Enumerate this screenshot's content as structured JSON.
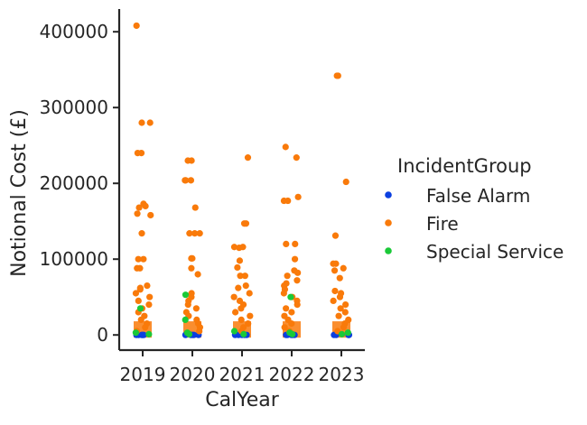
{
  "chart_data": {
    "type": "scatter",
    "title": "",
    "xlabel": "CalYear",
    "ylabel": "Notional Cost (£)",
    "categories": [
      "2019",
      "2020",
      "2021",
      "2022",
      "2023"
    ],
    "y_ticks": [
      "0",
      "100000",
      "200000",
      "300000",
      "400000"
    ],
    "ylim": [
      -20000,
      430000
    ],
    "legend": {
      "title": "IncidentGroup",
      "placement": "right"
    },
    "series": [
      {
        "name": "False Alarm",
        "color": "#0b3fe0",
        "points": [
          [
            "2019",
            0
          ],
          [
            "2019",
            0
          ],
          [
            "2019",
            0
          ],
          [
            "2019",
            0
          ],
          [
            "2019",
            0
          ],
          [
            "2020",
            0
          ],
          [
            "2020",
            0
          ],
          [
            "2020",
            0
          ],
          [
            "2020",
            0
          ],
          [
            "2020",
            0
          ],
          [
            "2021",
            0
          ],
          [
            "2021",
            0
          ],
          [
            "2021",
            0
          ],
          [
            "2021",
            0
          ],
          [
            "2021",
            0
          ],
          [
            "2022",
            0
          ],
          [
            "2022",
            0
          ],
          [
            "2022",
            0
          ],
          [
            "2022",
            0
          ],
          [
            "2022",
            0
          ],
          [
            "2023",
            0
          ],
          [
            "2023",
            0
          ],
          [
            "2023",
            0
          ],
          [
            "2023",
            0
          ]
        ]
      },
      {
        "name": "Fire",
        "color": "#f97a0a",
        "points": [
          [
            "2019",
            408000
          ],
          [
            "2019",
            280000
          ],
          [
            "2019",
            280000
          ],
          [
            "2019",
            240000
          ],
          [
            "2019",
            240000
          ],
          [
            "2019",
            173000
          ],
          [
            "2019",
            170000
          ],
          [
            "2019",
            168000
          ],
          [
            "2019",
            160000
          ],
          [
            "2019",
            158000
          ],
          [
            "2019",
            134000
          ],
          [
            "2019",
            100000
          ],
          [
            "2019",
            100000
          ],
          [
            "2019",
            88000
          ],
          [
            "2019",
            88000
          ],
          [
            "2019",
            65000
          ],
          [
            "2019",
            62000
          ],
          [
            "2019",
            60000
          ],
          [
            "2019",
            55000
          ],
          [
            "2019",
            50000
          ],
          [
            "2019",
            45000
          ],
          [
            "2019",
            40000
          ],
          [
            "2019",
            35000
          ],
          [
            "2019",
            30000
          ],
          [
            "2019",
            25000
          ],
          [
            "2019",
            20000
          ],
          [
            "2019",
            15000
          ],
          [
            "2019",
            10000
          ],
          [
            "2019",
            5000
          ],
          [
            "2020",
            230000
          ],
          [
            "2020",
            230000
          ],
          [
            "2020",
            204000
          ],
          [
            "2020",
            204000
          ],
          [
            "2020",
            204000
          ],
          [
            "2020",
            168000
          ],
          [
            "2020",
            134000
          ],
          [
            "2020",
            134000
          ],
          [
            "2020",
            134000
          ],
          [
            "2020",
            101000
          ],
          [
            "2020",
            101000
          ],
          [
            "2020",
            88000
          ],
          [
            "2020",
            80000
          ],
          [
            "2020",
            55000
          ],
          [
            "2020",
            50000
          ],
          [
            "2020",
            45000
          ],
          [
            "2020",
            40000
          ],
          [
            "2020",
            35000
          ],
          [
            "2020",
            30000
          ],
          [
            "2020",
            25000
          ],
          [
            "2020",
            20000
          ],
          [
            "2020",
            15000
          ],
          [
            "2020",
            10000
          ],
          [
            "2020",
            5000
          ],
          [
            "2021",
            234000
          ],
          [
            "2021",
            147000
          ],
          [
            "2021",
            147000
          ],
          [
            "2021",
            116000
          ],
          [
            "2021",
            116000
          ],
          [
            "2021",
            115000
          ],
          [
            "2021",
            98000
          ],
          [
            "2021",
            89000
          ],
          [
            "2021",
            78000
          ],
          [
            "2021",
            78000
          ],
          [
            "2021",
            65000
          ],
          [
            "2021",
            62000
          ],
          [
            "2021",
            55000
          ],
          [
            "2021",
            50000
          ],
          [
            "2021",
            45000
          ],
          [
            "2021",
            40000
          ],
          [
            "2021",
            35000
          ],
          [
            "2021",
            30000
          ],
          [
            "2021",
            25000
          ],
          [
            "2021",
            20000
          ],
          [
            "2021",
            15000
          ],
          [
            "2021",
            10000
          ],
          [
            "2021",
            5000
          ],
          [
            "2022",
            248000
          ],
          [
            "2022",
            234000
          ],
          [
            "2022",
            182000
          ],
          [
            "2022",
            177000
          ],
          [
            "2022",
            177000
          ],
          [
            "2022",
            120000
          ],
          [
            "2022",
            120000
          ],
          [
            "2022",
            100000
          ],
          [
            "2022",
            85000
          ],
          [
            "2022",
            82000
          ],
          [
            "2022",
            78000
          ],
          [
            "2022",
            72000
          ],
          [
            "2022",
            68000
          ],
          [
            "2022",
            65000
          ],
          [
            "2022",
            60000
          ],
          [
            "2022",
            55000
          ],
          [
            "2022",
            50000
          ],
          [
            "2022",
            45000
          ],
          [
            "2022",
            40000
          ],
          [
            "2022",
            35000
          ],
          [
            "2022",
            30000
          ],
          [
            "2022",
            25000
          ],
          [
            "2022",
            20000
          ],
          [
            "2022",
            15000
          ],
          [
            "2022",
            10000
          ],
          [
            "2022",
            5000
          ],
          [
            "2023",
            342000
          ],
          [
            "2023",
            342000
          ],
          [
            "2023",
            202000
          ],
          [
            "2023",
            131000
          ],
          [
            "2023",
            94000
          ],
          [
            "2023",
            94000
          ],
          [
            "2023",
            88000
          ],
          [
            "2023",
            85000
          ],
          [
            "2023",
            75000
          ],
          [
            "2023",
            58000
          ],
          [
            "2023",
            55000
          ],
          [
            "2023",
            50000
          ],
          [
            "2023",
            45000
          ],
          [
            "2023",
            40000
          ],
          [
            "2023",
            35000
          ],
          [
            "2023",
            30000
          ],
          [
            "2023",
            25000
          ],
          [
            "2023",
            20000
          ],
          [
            "2023",
            15000
          ],
          [
            "2023",
            10000
          ],
          [
            "2023",
            5000
          ]
        ]
      },
      {
        "name": "Special Service",
        "color": "#1ac938",
        "points": [
          [
            "2019",
            35000
          ],
          [
            "2019",
            3000
          ],
          [
            "2019",
            1000
          ],
          [
            "2020",
            53000
          ],
          [
            "2020",
            20000
          ],
          [
            "2020",
            3000
          ],
          [
            "2020",
            1000
          ],
          [
            "2021",
            5000
          ],
          [
            "2021",
            1000
          ],
          [
            "2022",
            50000
          ],
          [
            "2022",
            3000
          ],
          [
            "2022",
            1000
          ],
          [
            "2023",
            3000
          ],
          [
            "2023",
            1000
          ]
        ]
      }
    ]
  }
}
